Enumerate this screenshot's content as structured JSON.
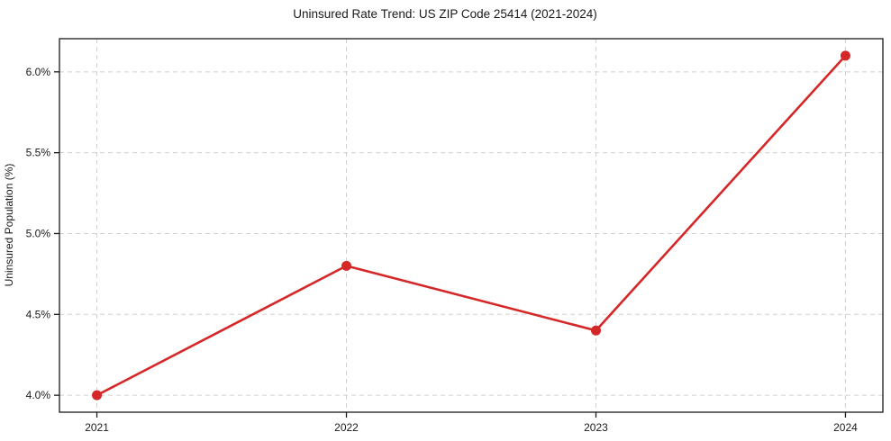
{
  "figure": {
    "background": "#ffffff"
  },
  "chart_data": {
    "type": "line",
    "title": "Uninsured Rate Trend: US ZIP Code 25414 (2021-2024)",
    "xlabel": "",
    "ylabel": "Uninsured Population (%)",
    "x": [
      2021,
      2022,
      2023,
      2024
    ],
    "values": [
      4.0,
      4.8,
      4.4,
      6.1
    ],
    "xlim": [
      2020.85,
      2024.15
    ],
    "ylim": [
      3.895,
      6.205
    ],
    "xticks": {
      "values": [
        2021,
        2022,
        2023,
        2024
      ],
      "labels": [
        "2021",
        "2022",
        "2023",
        "2024"
      ]
    },
    "yticks": {
      "values": [
        4.0,
        4.5,
        5.0,
        5.5,
        6.0
      ],
      "labels": [
        "4.0%",
        "4.5%",
        "5.0%",
        "5.5%",
        "6.0%"
      ]
    },
    "grid": true,
    "grid_style": "dashed",
    "legend": "none",
    "marker": "circle",
    "colors": {
      "line": "#d62728",
      "marker": "#d62728",
      "grid": "#d0d0d0",
      "spine": "#1a1a1a",
      "text": "#1a1a1a"
    }
  }
}
